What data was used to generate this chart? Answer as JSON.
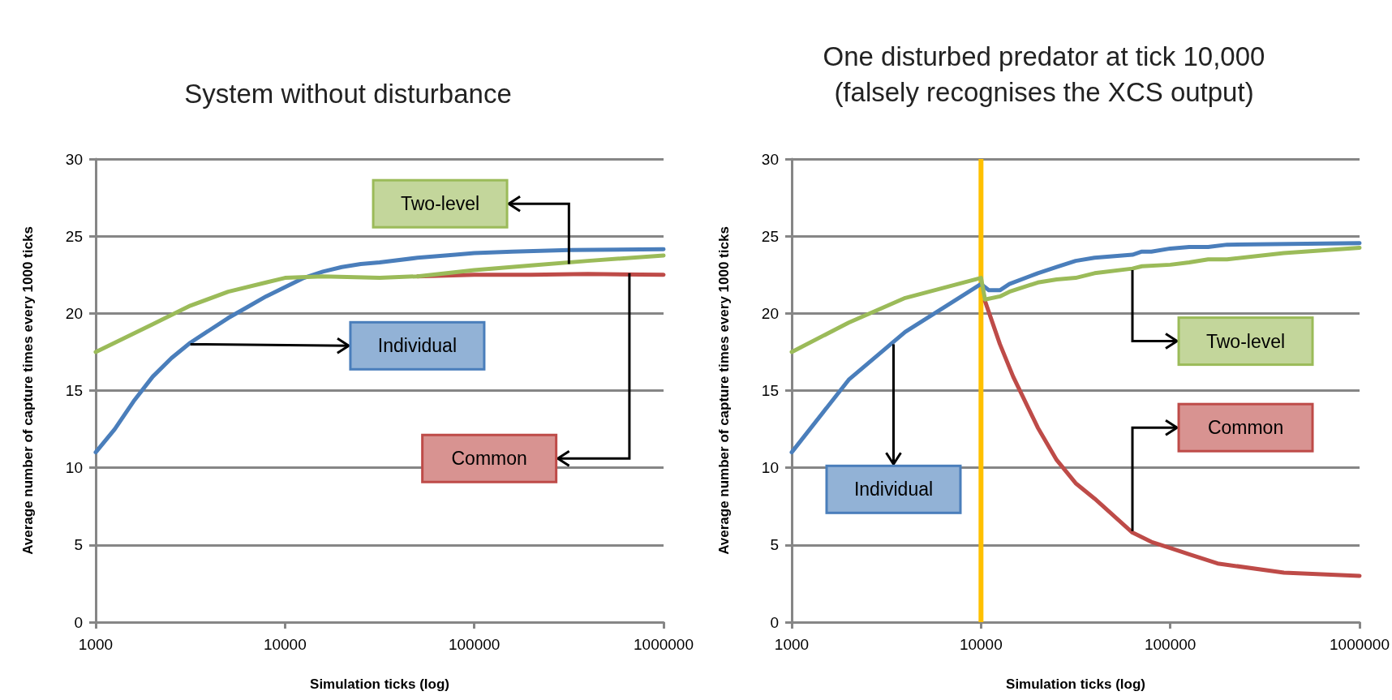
{
  "chart_data": [
    {
      "type": "line",
      "title": "System without disturbance",
      "xlabel": "Simulation ticks (log)",
      "ylabel": "Average number of capture times every 1000 ticks",
      "log": "x",
      "xlim": [
        1000,
        1000000
      ],
      "xticks": [
        1000,
        10000,
        100000,
        1000000
      ],
      "ylim": [
        0,
        30
      ],
      "yticks": [
        0,
        5,
        10,
        15,
        20,
        25,
        30
      ],
      "grid": "y",
      "legend": false,
      "marker": "none",
      "line_style": "solid",
      "series": [
        {
          "name": "Common",
          "color": "#be4b48",
          "x": [
            50119,
            100000,
            199526,
            398107,
            1000000
          ],
          "values": [
            22.4,
            22.5,
            22.5,
            22.55,
            22.5
          ]
        },
        {
          "name": "Individual",
          "color": "#4a7ebb",
          "x": [
            1000,
            1260,
            1585,
            2000,
            2512,
            3162,
            3981,
            5012,
            6310,
            7943,
            10000,
            12589,
            15849,
            19953,
            25119,
            31623,
            50119,
            79433,
            100000,
            158489,
            316228,
            1000000
          ],
          "values": [
            11,
            12.5,
            14.3,
            15.9,
            17.1,
            18.1,
            18.9,
            19.7,
            20.4,
            21.1,
            21.7,
            22.3,
            22.7,
            23,
            23.2,
            23.3,
            23.6,
            23.8,
            23.9,
            24,
            24.1,
            24.15
          ]
        },
        {
          "name": "Two-level",
          "color": "#9bbb59",
          "x": [
            1000,
            2000,
            3162,
            5012,
            7943,
            10000,
            15849,
            31623,
            50119,
            100000,
            199526,
            398107,
            1000000
          ],
          "values": [
            17.5,
            19.3,
            20.5,
            21.4,
            22,
            22.3,
            22.4,
            22.3,
            22.4,
            22.8,
            23.1,
            23.4,
            23.75
          ]
        }
      ]
    },
    {
      "type": "line",
      "title": "One disturbed predator at tick 10,000\n(falsely recognises the XCS output)",
      "xlabel": "Simulation ticks (log)",
      "ylabel": "Average number of capture times every 1000 ticks",
      "log": "x",
      "xlim": [
        1000,
        1000000
      ],
      "xticks": [
        1000,
        10000,
        100000,
        1000000
      ],
      "ylim": [
        0,
        30
      ],
      "yticks": [
        0,
        5,
        10,
        15,
        20,
        25,
        30
      ],
      "grid": "y",
      "legend": false,
      "marker": "none",
      "line_style": "solid",
      "ref_lines": [
        {
          "axis": "x",
          "value": 10000,
          "label": null,
          "color": "#ffc000"
        }
      ],
      "series": [
        {
          "name": "Common",
          "color": "#be4b48",
          "x": [
            10500,
            12589,
            14791,
            19953,
            25119,
            31623,
            39811,
            63096,
            79433,
            100000,
            125893,
            177828,
            398107,
            1000000
          ],
          "values": [
            20.8,
            18,
            15.9,
            12.6,
            10.5,
            9,
            8,
            5.8,
            5.2,
            4.8,
            4.4,
            3.8,
            3.2,
            3
          ]
        },
        {
          "name": "Individual",
          "color": "#4a7ebb",
          "x": [
            1000,
            2000,
            3981,
            10000,
            11000,
            12589,
            14125,
            19953,
            25119,
            31623,
            39811,
            63096,
            70795,
            79433,
            100000,
            125893,
            158489,
            199526,
            1000000
          ],
          "values": [
            11,
            15.7,
            18.8,
            21.9,
            21.5,
            21.5,
            21.9,
            22.6,
            23,
            23.4,
            23.6,
            23.8,
            24,
            24,
            24.2,
            24.3,
            24.3,
            24.45,
            24.55
          ]
        },
        {
          "name": "Two-level",
          "color": "#9bbb59",
          "x": [
            1000,
            2000,
            3981,
            10000,
            10500,
            12589,
            14125,
            19953,
            25119,
            31623,
            39811,
            63096,
            70795,
            100000,
            125893,
            158489,
            199526,
            398107,
            1000000
          ],
          "values": [
            17.5,
            19.4,
            21,
            22.3,
            20.9,
            21.1,
            21.4,
            22,
            22.2,
            22.3,
            22.6,
            22.9,
            23.05,
            23.15,
            23.3,
            23.5,
            23.5,
            23.9,
            24.25
          ]
        }
      ]
    }
  ]
}
